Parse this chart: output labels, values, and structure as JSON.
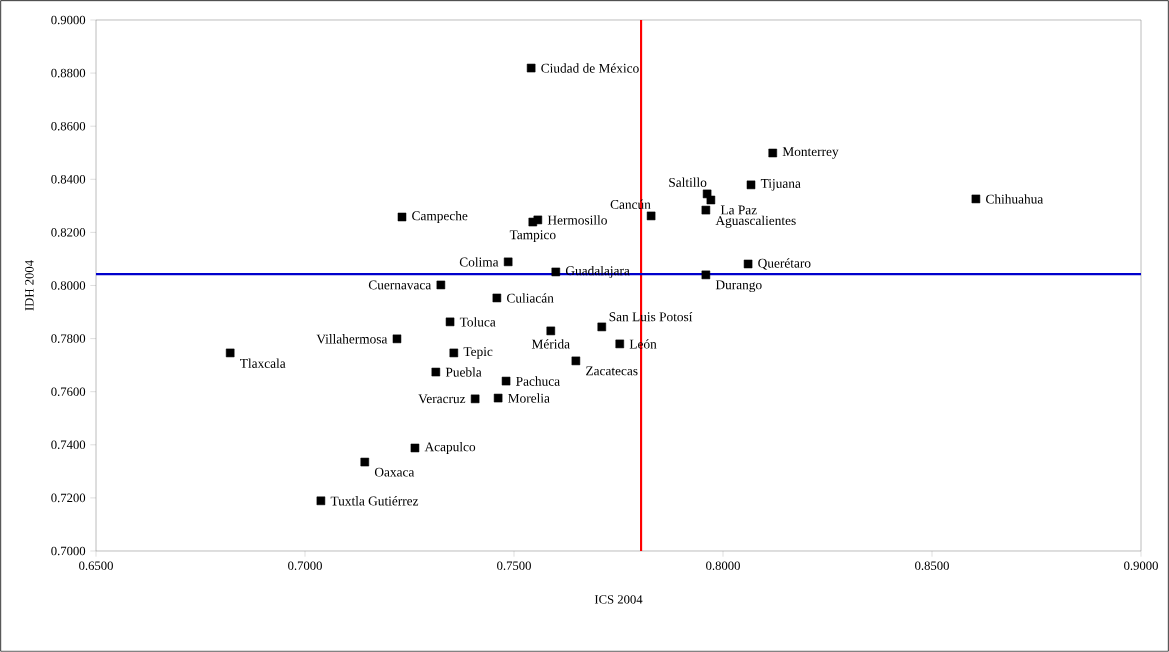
{
  "chart_data": {
    "type": "scatter",
    "xlabel": "ICS 2004",
    "ylabel": "IDH 2004",
    "xlim": [
      0.65,
      0.9
    ],
    "ylim": [
      0.7,
      0.9
    ],
    "xticks": [
      {
        "value": 0.65,
        "label": "0.6500"
      },
      {
        "value": 0.7,
        "label": "0.7000"
      },
      {
        "value": 0.75,
        "label": "0.7500"
      },
      {
        "value": 0.8,
        "label": "0.8000"
      },
      {
        "value": 0.85,
        "label": "0.8500"
      },
      {
        "value": 0.9,
        "label": "0.9000"
      }
    ],
    "yticks": [
      {
        "value": 0.7,
        "label": "0.7000"
      },
      {
        "value": 0.72,
        "label": "0.7200"
      },
      {
        "value": 0.74,
        "label": "0.7400"
      },
      {
        "value": 0.76,
        "label": "0.7600"
      },
      {
        "value": 0.78,
        "label": "0.7800"
      },
      {
        "value": 0.8,
        "label": "0.8000"
      },
      {
        "value": 0.82,
        "label": "0.8200"
      },
      {
        "value": 0.84,
        "label": "0.8400"
      },
      {
        "value": 0.86,
        "label": "0.8600"
      },
      {
        "value": 0.88,
        "label": "0.8800"
      },
      {
        "value": 0.9,
        "label": "0.9000"
      }
    ],
    "grid": false,
    "marker": "square",
    "series": [
      {
        "color": "#000000",
        "x": [
          0.7541,
          0.8119,
          0.8067,
          0.8605,
          0.7962,
          0.7971,
          0.7959,
          0.7828,
          0.7232,
          0.7557,
          0.7545,
          0.7486,
          0.76,
          0.806,
          0.7959,
          0.7325,
          0.7459,
          0.7347,
          0.771,
          0.722,
          0.7588,
          0.7753,
          0.6821,
          0.7356,
          0.7648,
          0.7313,
          0.7481,
          0.7407,
          0.7462,
          0.7263,
          0.7143,
          0.7038
        ],
        "values": [
          0.8819,
          0.8499,
          0.8379,
          0.8326,
          0.8345,
          0.8322,
          0.8284,
          0.8262,
          0.8258,
          0.8247,
          0.8239,
          0.8089,
          0.8051,
          0.8081,
          0.804,
          0.8002,
          0.7953,
          0.7863,
          0.7844,
          0.7799,
          0.7829,
          0.778,
          0.7746,
          0.7746,
          0.7716,
          0.7674,
          0.764,
          0.7573,
          0.7576,
          0.7388,
          0.7335,
          0.7189
        ]
      }
    ],
    "ref_lines": [
      {
        "axis": "x",
        "value": 0.7804,
        "color": "#ff0000"
      },
      {
        "axis": "y",
        "value": 0.8043,
        "color": "#0000cc"
      }
    ],
    "annotations": [
      {
        "text": "Ciudad de México",
        "x": 0.7541,
        "y": 0.8819
      },
      {
        "text": "Monterrey",
        "x": 0.8119,
        "y": 0.8499
      },
      {
        "text": "Tijuana",
        "x": 0.8067,
        "y": 0.8379
      },
      {
        "text": "Chihuahua",
        "x": 0.8605,
        "y": 0.8326
      },
      {
        "text": "Saltillo",
        "x": 0.7962,
        "y": 0.8345
      },
      {
        "text": "La Paz",
        "x": 0.7971,
        "y": 0.8322
      },
      {
        "text": "Aguascalientes",
        "x": 0.7959,
        "y": 0.8284
      },
      {
        "text": "Cancún",
        "x": 0.7828,
        "y": 0.8262
      },
      {
        "text": "Campeche",
        "x": 0.7232,
        "y": 0.8258
      },
      {
        "text": "Hermosillo",
        "x": 0.7557,
        "y": 0.8247
      },
      {
        "text": "Tampico",
        "x": 0.7545,
        "y": 0.8239
      },
      {
        "text": "Colima",
        "x": 0.7486,
        "y": 0.8089
      },
      {
        "text": "Guadalajara",
        "x": 0.76,
        "y": 0.8051
      },
      {
        "text": "Querétaro",
        "x": 0.806,
        "y": 0.8081
      },
      {
        "text": "Durango",
        "x": 0.7959,
        "y": 0.804
      },
      {
        "text": "Cuernavaca",
        "x": 0.7325,
        "y": 0.8002
      },
      {
        "text": "Culiacán",
        "x": 0.7459,
        "y": 0.7953
      },
      {
        "text": "Toluca",
        "x": 0.7347,
        "y": 0.7863
      },
      {
        "text": "San Luis Potosí",
        "x": 0.771,
        "y": 0.7844
      },
      {
        "text": "Villahermosa",
        "x": 0.722,
        "y": 0.7799
      },
      {
        "text": "Mérida",
        "x": 0.7588,
        "y": 0.7829
      },
      {
        "text": "León",
        "x": 0.7753,
        "y": 0.778
      },
      {
        "text": "Tlaxcala",
        "x": 0.6821,
        "y": 0.7746
      },
      {
        "text": "Tepic",
        "x": 0.7356,
        "y": 0.7746
      },
      {
        "text": "Zacatecas",
        "x": 0.7648,
        "y": 0.7716
      },
      {
        "text": "Puebla",
        "x": 0.7313,
        "y": 0.7674
      },
      {
        "text": "Pachuca",
        "x": 0.7481,
        "y": 0.764
      },
      {
        "text": "Veracruz",
        "x": 0.7407,
        "y": 0.7573
      },
      {
        "text": "Morelia",
        "x": 0.7462,
        "y": 0.7576
      },
      {
        "text": "Acapulco",
        "x": 0.7263,
        "y": 0.7388
      },
      {
        "text": "Oaxaca",
        "x": 0.7143,
        "y": 0.7335
      },
      {
        "text": "Tuxtla Gutiérrez",
        "x": 0.7038,
        "y": 0.7189
      }
    ]
  }
}
